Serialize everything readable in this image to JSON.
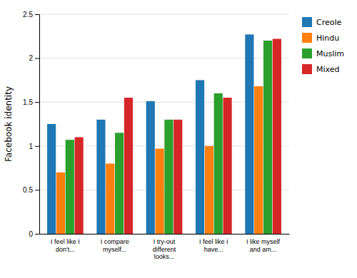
{
  "chart_data": {
    "type": "bar",
    "categories": [
      "I feel like I\ndon't...",
      "I compare\nmyself...",
      "I try-out\ndifferent\nlooks...",
      "I feel like I\nhave...",
      "I like myself\nand am..."
    ],
    "series": [
      {
        "name": "Creole",
        "values": [
          1.25,
          1.3,
          1.51,
          1.75,
          2.27
        ]
      },
      {
        "name": "Hindu",
        "values": [
          0.7,
          0.8,
          0.97,
          1.0,
          1.68
        ]
      },
      {
        "name": "Muslim",
        "values": [
          1.07,
          1.15,
          1.3,
          1.6,
          2.2
        ]
      },
      {
        "name": "Mixed",
        "values": [
          1.1,
          1.55,
          1.3,
          1.55,
          2.22
        ]
      }
    ],
    "y_label": "Facebook identity",
    "ylim": [
      0,
      2.5
    ],
    "yticks": [
      0,
      0.5,
      1,
      1.5,
      2,
      2.5
    ],
    "grid": true,
    "legend": "right"
  }
}
